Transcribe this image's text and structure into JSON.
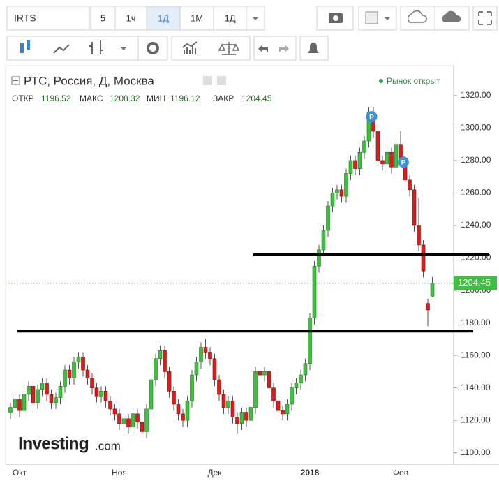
{
  "toolbar": {
    "symbol": "IRTS",
    "intervals": [
      "5",
      "1ч",
      "1Д",
      "1М",
      "1Д"
    ],
    "active": 2
  },
  "chart_data": {
    "type": "candlestick",
    "title": "РТС, Россия, Д, Москва",
    "status": "Рынок открыт",
    "ohlc_labels": [
      "ОТКР",
      "МАКС",
      "МИН",
      "ЗАКР"
    ],
    "watermark": [
      "Investing",
      ".com"
    ],
    "categories": [
      null,
      null,
      "Окт",
      null,
      null,
      null,
      null,
      null,
      null,
      null,
      null,
      null,
      null,
      null,
      null,
      null,
      null,
      null,
      null,
      null,
      null,
      null,
      null,
      null,
      "Ноя",
      null,
      null,
      null,
      null,
      null,
      null,
      null,
      null,
      null,
      null,
      null,
      null,
      null,
      null,
      null,
      null,
      null,
      null,
      null,
      null,
      "Дек",
      null,
      null,
      null,
      null,
      null,
      null,
      null,
      null,
      null,
      null,
      null,
      null,
      null,
      null,
      null,
      null,
      null,
      null,
      null,
      null,
      "2018",
      null,
      null,
      null,
      null,
      null,
      null,
      null,
      null,
      null,
      null,
      null,
      null,
      null,
      null,
      null,
      null,
      null,
      null,
      null,
      "Фев",
      null,
      null,
      null,
      null,
      null,
      null,
      null
    ],
    "open": [
      1125,
      1128,
      1133,
      1126,
      1136,
      1141,
      1131,
      1139,
      1143,
      1136,
      1131,
      1134,
      1141,
      1151,
      1146,
      1156,
      1159,
      1151,
      1146,
      1140,
      1135,
      1138,
      1132,
      1127,
      1124,
      1118,
      1121,
      1116,
      1124,
      1119,
      1113,
      1127,
      1145,
      1158,
      1163,
      1150,
      1138,
      1130,
      1124,
      1120,
      1132,
      1148,
      1156,
      1165,
      1162,
      1158,
      1145,
      1136,
      1128,
      1132,
      1122,
      1118,
      1125,
      1120,
      1128,
      1150,
      1148,
      1150,
      1140,
      1132,
      1126,
      1124,
      1130,
      1140,
      1143,
      1148,
      1155,
      1183,
      1215,
      1225,
      1237,
      1252,
      1260,
      1262,
      1258,
      1272,
      1280,
      1275,
      1285,
      1292,
      1310,
      1298,
      1280,
      1278,
      1285,
      1276,
      1290,
      1280,
      1268,
      1262,
      1240,
      1228,
      1192,
      1196.52
    ],
    "high": [
      1131,
      1136,
      1136,
      1139,
      1144,
      1144,
      1142,
      1146,
      1146,
      1139,
      1137,
      1144,
      1154,
      1154,
      1159,
      1162,
      1162,
      1154,
      1149,
      1143,
      1141,
      1141,
      1135,
      1130,
      1127,
      1124,
      1124,
      1127,
      1127,
      1122,
      1130,
      1148,
      1161,
      1166,
      1166,
      1153,
      1141,
      1133,
      1127,
      1135,
      1151,
      1159,
      1168,
      1170,
      1165,
      1161,
      1148,
      1139,
      1135,
      1135,
      1125,
      1128,
      1128,
      1131,
      1153,
      1153,
      1153,
      1153,
      1143,
      1135,
      1129,
      1133,
      1143,
      1146,
      1151,
      1158,
      1186,
      1218,
      1228,
      1240,
      1255,
      1263,
      1265,
      1265,
      1275,
      1283,
      1283,
      1288,
      1295,
      1313,
      1313,
      1301,
      1283,
      1288,
      1288,
      1293,
      1298,
      1283,
      1271,
      1265,
      1257,
      1231,
      1195,
      1208.32
    ],
    "low": [
      1121,
      1124,
      1122,
      1122,
      1132,
      1127,
      1127,
      1135,
      1132,
      1127,
      1127,
      1130,
      1137,
      1142,
      1142,
      1152,
      1147,
      1142,
      1136,
      1131,
      1131,
      1128,
      1123,
      1120,
      1114,
      1114,
      1112,
      1112,
      1115,
      1109,
      1109,
      1123,
      1141,
      1154,
      1146,
      1134,
      1126,
      1120,
      1116,
      1116,
      1128,
      1144,
      1152,
      1158,
      1154,
      1141,
      1132,
      1124,
      1124,
      1118,
      1112,
      1114,
      1116,
      1116,
      1124,
      1144,
      1144,
      1136,
      1128,
      1122,
      1120,
      1120,
      1126,
      1136,
      1139,
      1144,
      1151,
      1179,
      1211,
      1221,
      1233,
      1248,
      1256,
      1254,
      1254,
      1268,
      1271,
      1271,
      1281,
      1288,
      1294,
      1276,
      1274,
      1274,
      1272,
      1272,
      1276,
      1264,
      1258,
      1236,
      1224,
      1208,
      1178,
      1196.12
    ],
    "close": [
      1128,
      1133,
      1126,
      1136,
      1141,
      1131,
      1139,
      1143,
      1136,
      1131,
      1134,
      1141,
      1151,
      1146,
      1156,
      1159,
      1151,
      1146,
      1140,
      1135,
      1138,
      1132,
      1127,
      1124,
      1118,
      1121,
      1116,
      1124,
      1119,
      1113,
      1127,
      1145,
      1158,
      1163,
      1150,
      1138,
      1130,
      1124,
      1120,
      1132,
      1148,
      1156,
      1165,
      1162,
      1158,
      1145,
      1136,
      1128,
      1132,
      1122,
      1118,
      1125,
      1120,
      1128,
      1150,
      1148,
      1150,
      1140,
      1132,
      1126,
      1124,
      1130,
      1140,
      1143,
      1148,
      1155,
      1183,
      1215,
      1225,
      1237,
      1252,
      1260,
      1262,
      1258,
      1272,
      1280,
      1275,
      1285,
      1292,
      1310,
      1298,
      1280,
      1278,
      1285,
      1276,
      1290,
      1280,
      1268,
      1262,
      1240,
      1228,
      1212,
      1188,
      1204.45
    ],
    "up_color": "#3fbf3f",
    "down_color": "#d91c1c",
    "events": [
      {
        "label": "P",
        "category": 79,
        "value": 1307
      },
      {
        "label": "P",
        "category": 86,
        "value": 1279
      }
    ],
    "drawn_lines": [
      {
        "value": 1222
      },
      {
        "value": 1175
      }
    ],
    "ylim": [
      1093,
      1338
    ],
    "yticks": [
      {
        "value": 1100,
        "label": "1100.00"
      },
      {
        "value": 1120,
        "label": "1120.00"
      },
      {
        "value": 1140,
        "label": "1140.00"
      },
      {
        "value": 1160,
        "label": "1160.00"
      },
      {
        "value": 1180,
        "label": "1180.00"
      },
      {
        "value": 1200,
        "label": "1200.00"
      },
      {
        "value": 1220,
        "label": "1220.00"
      },
      {
        "value": 1240,
        "label": "1240.00"
      },
      {
        "value": 1260,
        "label": "1260.00"
      },
      {
        "value": 1280,
        "label": "1280.00"
      },
      {
        "value": 1300,
        "label": "1300.00"
      },
      {
        "value": 1320,
        "label": "1320.00"
      }
    ],
    "grid": false
  }
}
